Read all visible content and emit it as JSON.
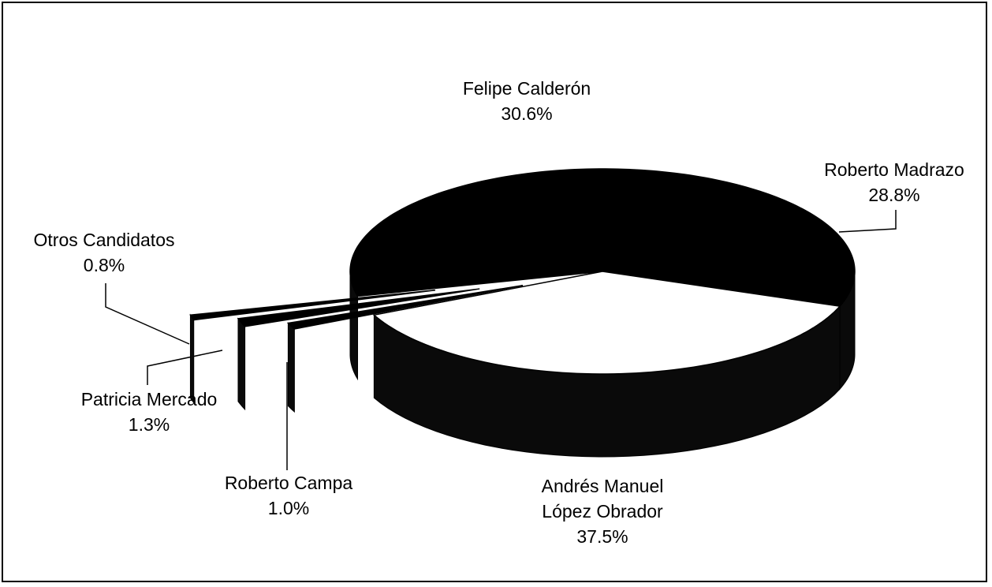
{
  "chart_data": {
    "type": "pie",
    "three_d": true,
    "categories": [
      "Felipe Calderón",
      "Roberto Madrazo",
      "Andrés Manuel López Obrador",
      "Roberto Campa",
      "Patricia Mercado",
      "Otros Candidatos"
    ],
    "values": [
      30.6,
      28.8,
      37.5,
      1.0,
      1.3,
      0.8
    ],
    "value_labels": [
      "30.6%",
      "28.8%",
      "37.5%",
      "1.0%",
      "1.3%",
      "0.8%"
    ],
    "colors": [
      "#000000",
      "#000000",
      "#ffffff",
      "#000000",
      "#000000",
      "#000000"
    ]
  }
}
